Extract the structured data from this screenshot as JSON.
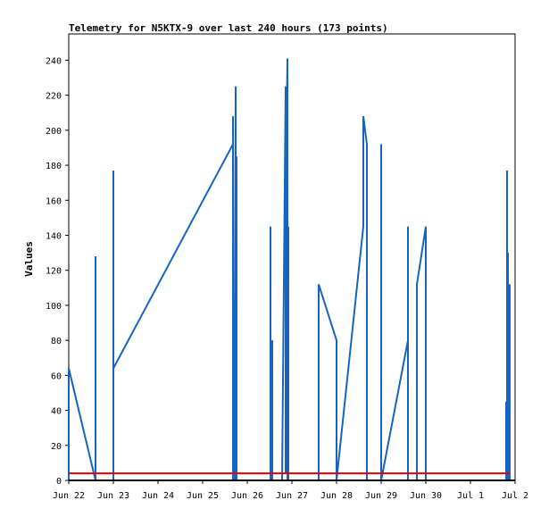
{
  "chart_data": {
    "type": "line",
    "title": "Telemetry for N5KTX-9 over last 240 hours (173 points)",
    "ylabel": "Values",
    "xlabel": "",
    "ylim": [
      0,
      255
    ],
    "xlim": [
      "2025-06-22 00:00",
      "2025-07-02 00:00"
    ],
    "yticks": [
      0,
      20,
      40,
      60,
      80,
      100,
      120,
      140,
      160,
      180,
      200,
      220,
      240
    ],
    "xticks": [
      {
        "at": "2025-06-22 00:00",
        "label": "Jun 22"
      },
      {
        "at": "2025-06-23 00:00",
        "label": "Jun 23"
      },
      {
        "at": "2025-06-24 00:00",
        "label": "Jun 24"
      },
      {
        "at": "2025-06-25 00:00",
        "label": "Jun 25"
      },
      {
        "at": "2025-06-26 00:00",
        "label": "Jun 26"
      },
      {
        "at": "2025-06-27 00:00",
        "label": "Jun 27"
      },
      {
        "at": "2025-06-28 00:00",
        "label": "Jun 28"
      },
      {
        "at": "2025-06-29 00:00",
        "label": "Jun 29"
      },
      {
        "at": "2025-06-30 00:00",
        "label": "Jun 30"
      },
      {
        "at": "2025-07-01 00:00",
        "label": "Jul 1"
      },
      {
        "at": "2025-07-02 00:00",
        "label": "Jul 2"
      }
    ],
    "grid": false,
    "series": [
      {
        "color": "#1565c0",
        "points": [
          [
            "2025-06-22 00:00",
            64
          ],
          [
            "2025-06-22 00:00",
            0
          ],
          [
            "2025-06-22 00:00",
            64
          ],
          [
            "2025-06-22 14:24",
            0
          ],
          [
            "2025-06-22 14:24",
            128
          ],
          [
            "2025-06-22 14:24",
            0
          ],
          [
            "2025-06-23 00:00",
            0
          ],
          [
            "2025-06-23 00:00",
            177
          ],
          [
            "2025-06-23 00:00",
            64
          ],
          [
            "2025-06-25 16:19",
            192
          ],
          [
            "2025-06-25 16:19",
            208
          ],
          [
            "2025-06-25 16:19",
            0
          ],
          [
            "2025-06-25 17:17",
            0
          ],
          [
            "2025-06-25 17:17",
            96
          ],
          [
            "2025-06-25 17:46",
            225
          ],
          [
            "2025-06-25 17:46",
            0
          ],
          [
            "2025-06-25 18:14",
            0
          ],
          [
            "2025-06-25 18:14",
            185
          ],
          [
            "2025-06-25 18:14",
            0
          ],
          [
            "2025-06-26 12:29",
            0
          ],
          [
            "2025-06-26 12:29",
            145
          ],
          [
            "2025-06-26 12:29",
            0
          ],
          [
            "2025-06-26 13:26",
            0
          ],
          [
            "2025-06-26 13:26",
            80
          ],
          [
            "2025-06-26 13:26",
            0
          ],
          [
            "2025-06-26 18:43",
            0
          ],
          [
            "2025-06-26 20:38",
            225
          ],
          [
            "2025-06-26 20:38",
            4
          ],
          [
            "2025-06-26 21:07",
            200
          ],
          [
            "2025-06-26 21:36",
            241
          ],
          [
            "2025-06-26 21:36",
            0
          ],
          [
            "2025-06-26 22:05",
            0
          ],
          [
            "2025-06-26 22:05",
            145
          ],
          [
            "2025-06-26 22:05",
            0
          ],
          [
            "2025-06-27 14:24",
            0
          ],
          [
            "2025-06-27 14:24",
            112
          ],
          [
            "2025-06-28 00:00",
            80
          ],
          [
            "2025-06-28 00:00",
            0
          ],
          [
            "2025-06-28 14:24",
            145
          ],
          [
            "2025-06-28 14:24",
            208
          ],
          [
            "2025-06-28 16:19",
            192
          ],
          [
            "2025-06-28 16:19",
            0
          ],
          [
            "2025-06-29 00:00",
            0
          ],
          [
            "2025-06-29 00:00",
            192
          ],
          [
            "2025-06-29 00:00",
            0
          ],
          [
            "2025-06-29 14:24",
            80
          ],
          [
            "2025-06-29 14:24",
            145
          ],
          [
            "2025-06-29 14:24",
            0
          ],
          [
            "2025-06-29 19:12",
            0
          ],
          [
            "2025-06-29 19:12",
            112
          ],
          [
            "2025-06-30 00:00",
            145
          ],
          [
            "2025-06-30 00:00",
            0
          ],
          [
            "2025-07-01 19:12",
            0
          ],
          [
            "2025-07-01 19:12",
            45
          ],
          [
            "2025-07-01 19:12",
            0
          ],
          [
            "2025-07-01 19:41",
            0
          ],
          [
            "2025-07-01 19:41",
            177
          ],
          [
            "2025-07-01 19:41",
            0
          ],
          [
            "2025-07-01 20:10",
            0
          ],
          [
            "2025-07-01 20:10",
            130
          ],
          [
            "2025-07-01 20:10",
            0
          ],
          [
            "2025-07-01 21:07",
            0
          ],
          [
            "2025-07-01 21:07",
            112
          ],
          [
            "2025-07-01 21:07",
            0
          ]
        ]
      },
      {
        "color": "#e00000",
        "points": [
          [
            "2025-06-22 00:00",
            4
          ],
          [
            "2025-07-01 21:07",
            4
          ]
        ]
      }
    ]
  }
}
